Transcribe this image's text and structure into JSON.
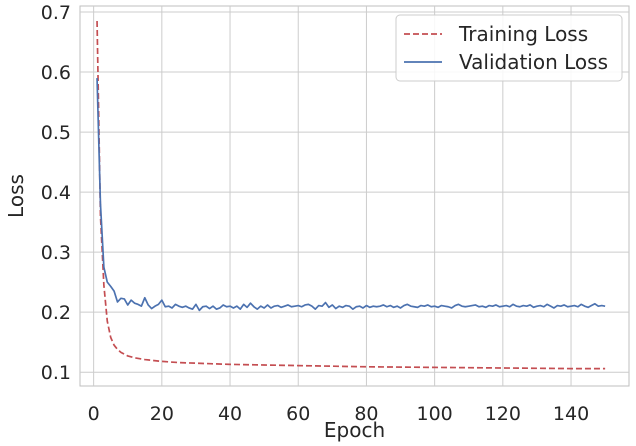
{
  "chart_data": {
    "type": "line",
    "xlabel": "Epoch",
    "ylabel": "Loss",
    "xlim": [
      -4,
      157
    ],
    "ylim": [
      0.077,
      0.71
    ],
    "x_ticks": [
      0,
      20,
      40,
      60,
      80,
      100,
      120,
      140
    ],
    "y_ticks": [
      0.1,
      0.2,
      0.3,
      0.4,
      0.5,
      0.6,
      0.7
    ],
    "grid": true,
    "legend_position": "top-right",
    "series": [
      {
        "name": "Training Loss",
        "color": "#c44e52",
        "dash": "dashed",
        "x": [
          1,
          2,
          3,
          4,
          5,
          6,
          7,
          8,
          10,
          12,
          15,
          20,
          25,
          30,
          40,
          50,
          60,
          80,
          100,
          120,
          140,
          150
        ],
        "y": [
          0.685,
          0.36,
          0.245,
          0.185,
          0.158,
          0.145,
          0.138,
          0.133,
          0.127,
          0.124,
          0.121,
          0.118,
          0.116,
          0.115,
          0.113,
          0.112,
          0.111,
          0.109,
          0.108,
          0.107,
          0.106,
          0.106
        ]
      },
      {
        "name": "Validation Loss",
        "color": "#4c72b0",
        "dash": "solid",
        "x": [
          1,
          2,
          3,
          4,
          5,
          6,
          7,
          8,
          9,
          10,
          11,
          12,
          13,
          14,
          15,
          16,
          17,
          18,
          19,
          20,
          21,
          22,
          23,
          24,
          25,
          26,
          27,
          28,
          29,
          30,
          31,
          32,
          33,
          34,
          35,
          36,
          37,
          38,
          39,
          40,
          41,
          42,
          43,
          44,
          45,
          46,
          47,
          48,
          49,
          50,
          51,
          52,
          53,
          54,
          55,
          56,
          57,
          58,
          59,
          60,
          61,
          62,
          63,
          64,
          65,
          66,
          67,
          68,
          69,
          70,
          71,
          72,
          73,
          74,
          75,
          76,
          77,
          78,
          79,
          80,
          81,
          82,
          83,
          84,
          85,
          86,
          87,
          88,
          89,
          90,
          91,
          92,
          93,
          94,
          95,
          96,
          97,
          98,
          99,
          100,
          101,
          102,
          103,
          104,
          105,
          106,
          107,
          108,
          109,
          110,
          111,
          112,
          113,
          114,
          115,
          116,
          117,
          118,
          119,
          120,
          121,
          122,
          123,
          124,
          125,
          126,
          127,
          128,
          129,
          130,
          131,
          132,
          133,
          134,
          135,
          136,
          137,
          138,
          139,
          140,
          141,
          142,
          143,
          144,
          145,
          146,
          147,
          148,
          149,
          150
        ],
        "y": [
          0.59,
          0.38,
          0.275,
          0.25,
          0.243,
          0.235,
          0.217,
          0.223,
          0.222,
          0.212,
          0.22,
          0.215,
          0.213,
          0.21,
          0.224,
          0.212,
          0.206,
          0.21,
          0.213,
          0.22,
          0.209,
          0.21,
          0.207,
          0.213,
          0.21,
          0.208,
          0.21,
          0.207,
          0.205,
          0.213,
          0.203,
          0.209,
          0.21,
          0.206,
          0.21,
          0.205,
          0.207,
          0.212,
          0.209,
          0.21,
          0.207,
          0.21,
          0.205,
          0.213,
          0.208,
          0.215,
          0.209,
          0.205,
          0.21,
          0.207,
          0.212,
          0.207,
          0.21,
          0.211,
          0.208,
          0.21,
          0.212,
          0.209,
          0.21,
          0.211,
          0.209,
          0.212,
          0.213,
          0.21,
          0.205,
          0.211,
          0.21,
          0.216,
          0.208,
          0.212,
          0.206,
          0.21,
          0.208,
          0.211,
          0.21,
          0.205,
          0.209,
          0.21,
          0.207,
          0.211,
          0.208,
          0.21,
          0.209,
          0.21,
          0.212,
          0.209,
          0.211,
          0.208,
          0.21,
          0.207,
          0.211,
          0.213,
          0.21,
          0.209,
          0.208,
          0.211,
          0.21,
          0.212,
          0.209,
          0.21,
          0.208,
          0.211,
          0.21,
          0.209,
          0.207,
          0.211,
          0.213,
          0.21,
          0.209,
          0.21,
          0.211,
          0.212,
          0.209,
          0.21,
          0.208,
          0.211,
          0.21,
          0.212,
          0.209,
          0.21,
          0.211,
          0.209,
          0.213,
          0.21,
          0.209,
          0.211,
          0.21,
          0.212,
          0.208,
          0.21,
          0.211,
          0.209,
          0.213,
          0.21,
          0.207,
          0.211,
          0.21,
          0.212,
          0.209,
          0.21,
          0.211,
          0.209,
          0.213,
          0.21,
          0.208,
          0.211,
          0.214,
          0.21,
          0.211,
          0.21
        ]
      }
    ]
  }
}
